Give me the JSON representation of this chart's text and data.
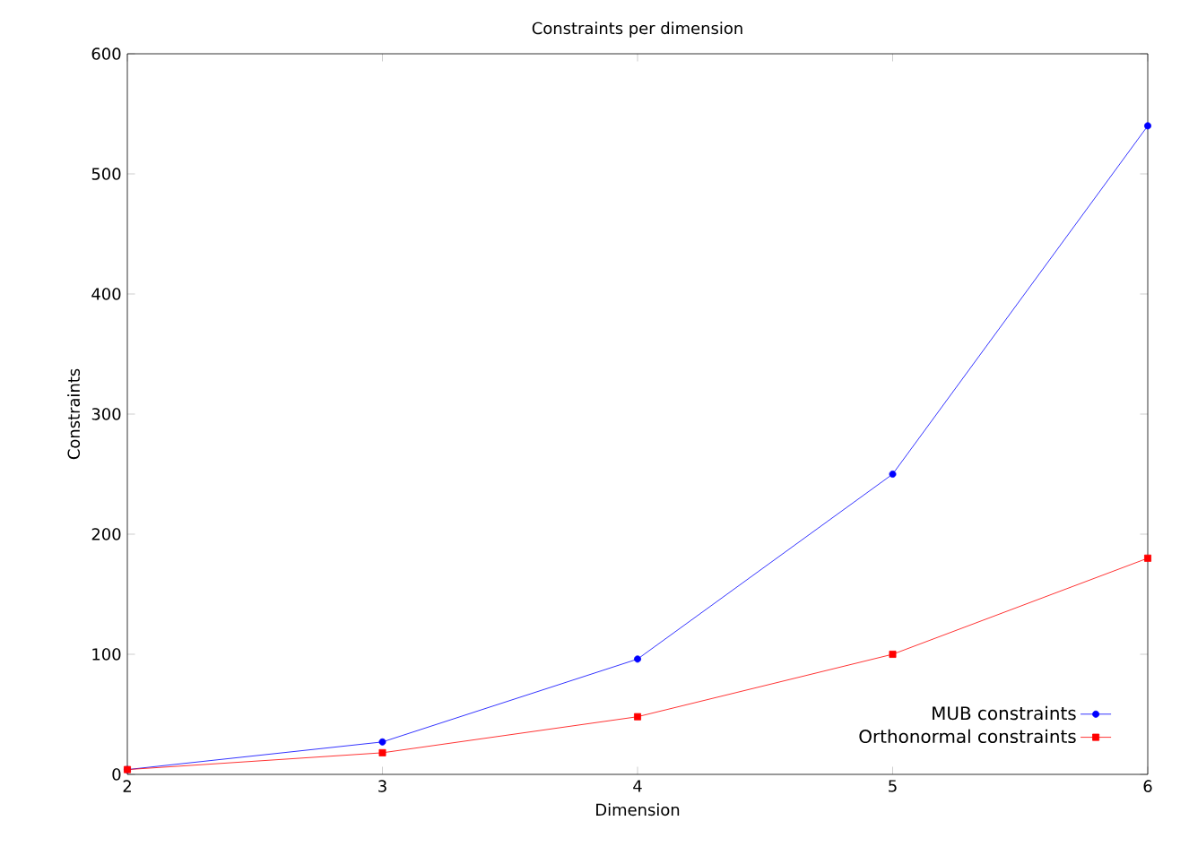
{
  "chart_data": {
    "type": "line",
    "title": "Constraints per dimension",
    "xlabel": "Dimension",
    "ylabel": "Constraints",
    "x": [
      2,
      3,
      4,
      5,
      6
    ],
    "series": [
      {
        "name": "MUB constraints",
        "color": "#0000ff",
        "marker": "circle",
        "values": [
          4,
          27,
          96,
          250,
          540
        ]
      },
      {
        "name": "Orthonormal constraints",
        "color": "#ff0000",
        "marker": "square",
        "values": [
          4,
          18,
          48,
          100,
          180
        ]
      }
    ],
    "xlim": [
      2,
      6
    ],
    "xticks": [
      2,
      3,
      4,
      5,
      6
    ],
    "ylim": [
      0,
      600
    ],
    "yticks": [
      0,
      100,
      200,
      300,
      400,
      500,
      600
    ],
    "grid": false,
    "legend": "bottom right",
    "line_style": "solid"
  }
}
